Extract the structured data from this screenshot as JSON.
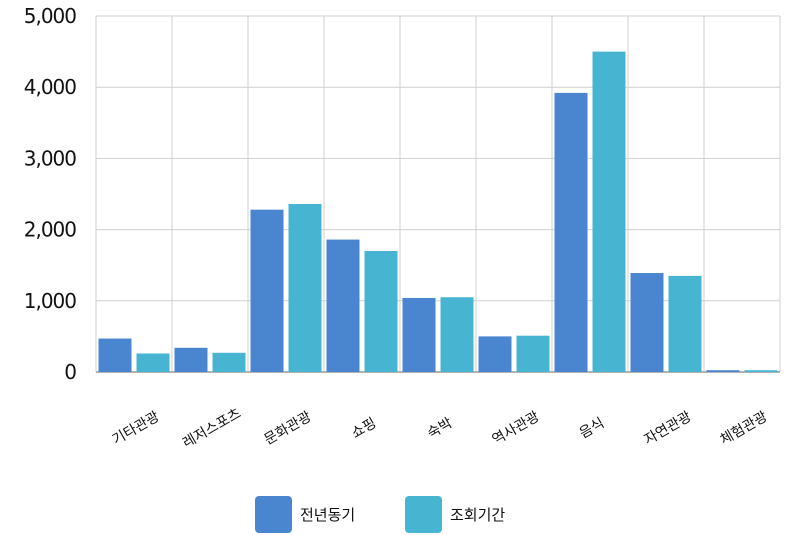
{
  "chart_data": {
    "type": "bar",
    "categories": [
      "기타관광",
      "레저스포츠",
      "문화관광",
      "쇼핑",
      "숙박",
      "역사관광",
      "음식",
      "자연관광",
      "체험관광"
    ],
    "series": [
      {
        "name": "전년동기",
        "color": "#4a86d0",
        "values": [
          470,
          340,
          2280,
          1860,
          1040,
          500,
          3920,
          1390,
          25
        ]
      },
      {
        "name": "조회기간",
        "color": "#47b5d2",
        "values": [
          260,
          270,
          2360,
          1700,
          1050,
          510,
          4500,
          1350,
          25
        ]
      }
    ],
    "y_ticks": [
      "0",
      "1,000",
      "2,000",
      "3,000",
      "4,000",
      "5,000"
    ],
    "ylim": [
      0,
      5000
    ],
    "grid": true,
    "legend_position": "bottom"
  }
}
